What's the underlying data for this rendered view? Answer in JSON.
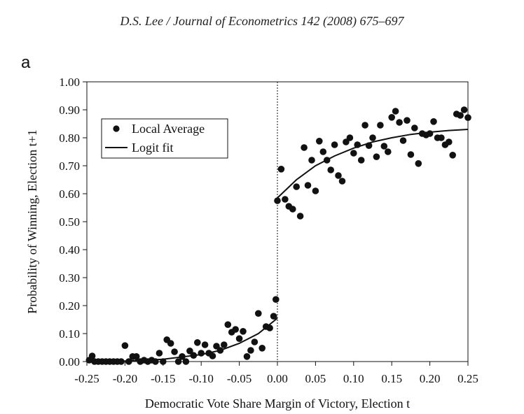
{
  "header": {
    "running_head": "D.S. Lee / Journal of Econometrics 142 (2008) 675–697"
  },
  "panel_label": "a",
  "chart_data": {
    "type": "scatter",
    "xlabel": "Democratic Vote Share Margin of  Victory, Election t",
    "ylabel": "Probability of  Winning, Election t+1",
    "xlim": [
      -0.25,
      0.25
    ],
    "ylim": [
      0,
      1
    ],
    "xticks": [
      "-0.25",
      "-0.20",
      "-0.15",
      "-0.10",
      "-0.05",
      "0.00",
      "0.05",
      "0.10",
      "0.15",
      "0.20",
      "0.25"
    ],
    "yticks": [
      "0.00",
      "0.10",
      "0.20",
      "0.30",
      "0.40",
      "0.50",
      "0.60",
      "0.70",
      "0.80",
      "0.90",
      "1.00"
    ],
    "cutoff": 0,
    "legend": {
      "placement": "top-left",
      "entries": [
        "Local Average",
        "Logit fit"
      ]
    },
    "series": [
      {
        "name": "Local Average",
        "type": "scatter",
        "points": [
          [
            -0.247,
            0.005
          ],
          [
            -0.243,
            0.02
          ],
          [
            -0.24,
            0.0
          ],
          [
            -0.235,
            0.0
          ],
          [
            -0.23,
            0.0
          ],
          [
            -0.225,
            0.0
          ],
          [
            -0.22,
            0.0
          ],
          [
            -0.215,
            0.0
          ],
          [
            -0.21,
            0.0
          ],
          [
            -0.205,
            0.0
          ],
          [
            -0.2,
            0.057
          ],
          [
            -0.195,
            0.0
          ],
          [
            -0.19,
            0.018
          ],
          [
            -0.185,
            0.018
          ],
          [
            -0.18,
            0.0
          ],
          [
            -0.175,
            0.005
          ],
          [
            -0.17,
            0.0
          ],
          [
            -0.165,
            0.005
          ],
          [
            -0.16,
            0.0
          ],
          [
            -0.155,
            0.03
          ],
          [
            -0.15,
            0.0
          ],
          [
            -0.145,
            0.078
          ],
          [
            -0.14,
            0.065
          ],
          [
            -0.135,
            0.035
          ],
          [
            -0.13,
            0.0
          ],
          [
            -0.125,
            0.018
          ],
          [
            -0.12,
            0.0
          ],
          [
            -0.115,
            0.038
          ],
          [
            -0.11,
            0.022
          ],
          [
            -0.105,
            0.068
          ],
          [
            -0.1,
            0.03
          ],
          [
            -0.095,
            0.06
          ],
          [
            -0.09,
            0.03
          ],
          [
            -0.085,
            0.02
          ],
          [
            -0.08,
            0.055
          ],
          [
            -0.075,
            0.04
          ],
          [
            -0.07,
            0.06
          ],
          [
            -0.065,
            0.132
          ],
          [
            -0.06,
            0.105
          ],
          [
            -0.055,
            0.115
          ],
          [
            -0.05,
            0.082
          ],
          [
            -0.045,
            0.108
          ],
          [
            -0.04,
            0.018
          ],
          [
            -0.035,
            0.04
          ],
          [
            -0.03,
            0.07
          ],
          [
            -0.025,
            0.172
          ],
          [
            -0.02,
            0.048
          ],
          [
            -0.015,
            0.125
          ],
          [
            -0.01,
            0.12
          ],
          [
            -0.005,
            0.162
          ],
          [
            -0.002,
            0.222
          ],
          [
            0.0,
            0.575
          ],
          [
            0.005,
            0.688
          ],
          [
            0.01,
            0.58
          ],
          [
            0.015,
            0.555
          ],
          [
            0.02,
            0.545
          ],
          [
            0.025,
            0.625
          ],
          [
            0.03,
            0.52
          ],
          [
            0.035,
            0.765
          ],
          [
            0.04,
            0.63
          ],
          [
            0.045,
            0.72
          ],
          [
            0.05,
            0.61
          ],
          [
            0.055,
            0.788
          ],
          [
            0.06,
            0.75
          ],
          [
            0.065,
            0.72
          ],
          [
            0.07,
            0.685
          ],
          [
            0.075,
            0.775
          ],
          [
            0.08,
            0.665
          ],
          [
            0.085,
            0.645
          ],
          [
            0.09,
            0.785
          ],
          [
            0.095,
            0.8
          ],
          [
            0.1,
            0.745
          ],
          [
            0.105,
            0.775
          ],
          [
            0.11,
            0.72
          ],
          [
            0.115,
            0.845
          ],
          [
            0.12,
            0.772
          ],
          [
            0.125,
            0.8
          ],
          [
            0.13,
            0.732
          ],
          [
            0.135,
            0.845
          ],
          [
            0.14,
            0.77
          ],
          [
            0.145,
            0.75
          ],
          [
            0.15,
            0.873
          ],
          [
            0.155,
            0.895
          ],
          [
            0.16,
            0.855
          ],
          [
            0.165,
            0.79
          ],
          [
            0.17,
            0.862
          ],
          [
            0.175,
            0.74
          ],
          [
            0.18,
            0.835
          ],
          [
            0.185,
            0.708
          ],
          [
            0.19,
            0.815
          ],
          [
            0.195,
            0.81
          ],
          [
            0.2,
            0.815
          ],
          [
            0.205,
            0.858
          ],
          [
            0.21,
            0.8
          ],
          [
            0.215,
            0.8
          ],
          [
            0.22,
            0.775
          ],
          [
            0.225,
            0.785
          ],
          [
            0.23,
            0.738
          ],
          [
            0.235,
            0.885
          ],
          [
            0.24,
            0.88
          ],
          [
            0.245,
            0.9
          ],
          [
            0.25,
            0.872
          ]
        ]
      },
      {
        "name": "Logit fit",
        "type": "line",
        "segments": [
          [
            [
              -0.25,
              0.0
            ],
            [
              -0.2,
              0.002
            ],
            [
              -0.15,
              0.008
            ],
            [
              -0.1,
              0.025
            ],
            [
              -0.075,
              0.04
            ],
            [
              -0.05,
              0.065
            ],
            [
              -0.025,
              0.1
            ],
            [
              0.0,
              0.155
            ]
          ],
          [
            [
              0.0,
              0.585
            ],
            [
              0.025,
              0.65
            ],
            [
              0.05,
              0.7
            ],
            [
              0.075,
              0.735
            ],
            [
              0.1,
              0.763
            ],
            [
              0.125,
              0.785
            ],
            [
              0.15,
              0.8
            ],
            [
              0.175,
              0.812
            ],
            [
              0.2,
              0.82
            ],
            [
              0.225,
              0.826
            ],
            [
              0.25,
              0.83
            ]
          ]
        ]
      }
    ]
  }
}
